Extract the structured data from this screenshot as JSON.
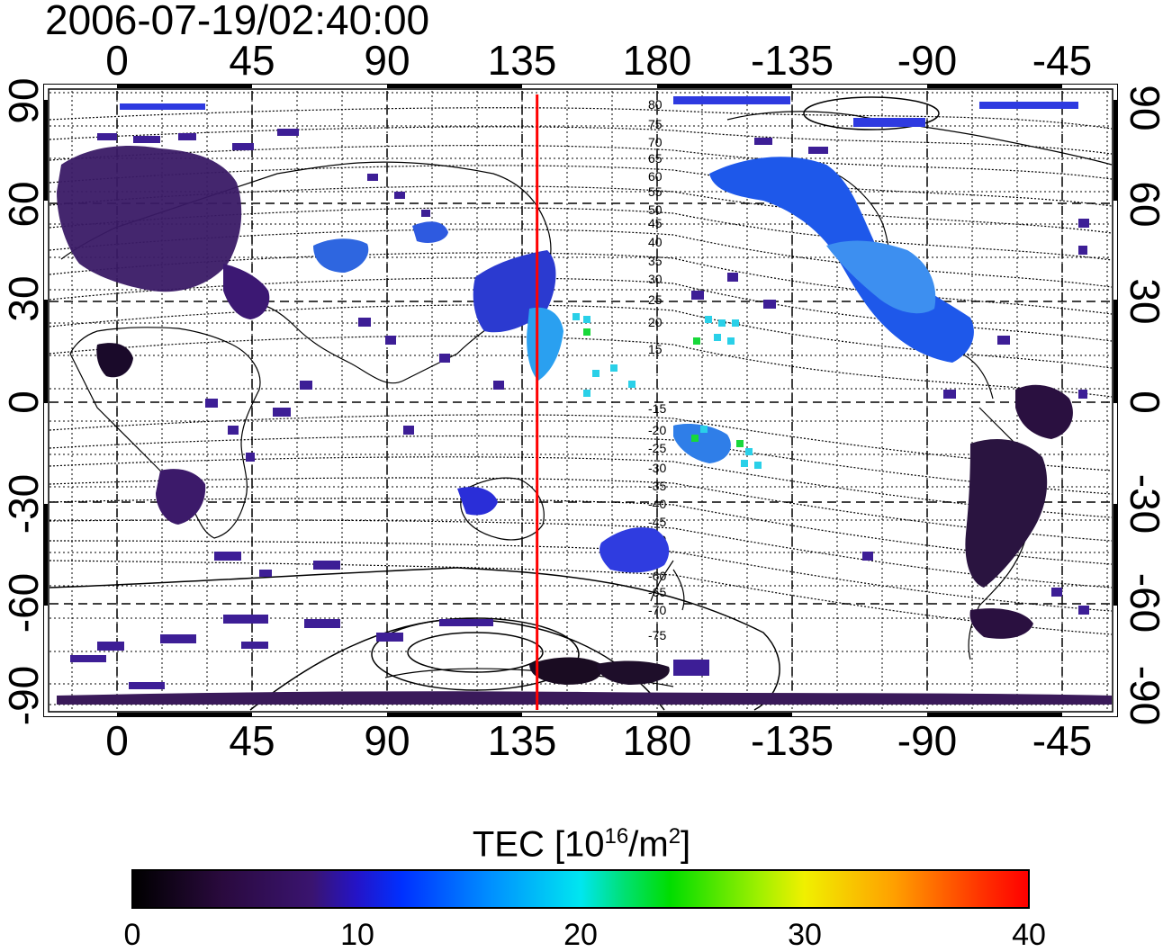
{
  "timestamp": "2006-07-19/02:40:00",
  "longitude_ticks": [
    "0",
    "45",
    "90",
    "135",
    "180",
    "-135",
    "-90",
    "-45"
  ],
  "latitude_ticks": [
    "90",
    "60",
    "30",
    "0",
    "-30",
    "-60",
    "-90"
  ],
  "contour_labels": [
    "80",
    "75",
    "70",
    "65",
    "60",
    "55",
    "50",
    "45",
    "40",
    "35",
    "30",
    "25",
    "20",
    "15",
    "-15",
    "-20",
    "-25",
    "-30",
    "-35",
    "-40",
    "-45",
    "-50",
    "-55",
    "-60",
    "-65",
    "-70",
    "-75"
  ],
  "colorbar": {
    "title_prefix": "TEC  [10",
    "title_exp1": "16",
    "title_mid": "/m",
    "title_exp2": "2",
    "title_suffix": "]",
    "ticks": [
      "0",
      "10",
      "20",
      "30",
      "40"
    ]
  },
  "colors": {
    "marker_line": "#ff0000"
  },
  "marker_longitude": 140
}
